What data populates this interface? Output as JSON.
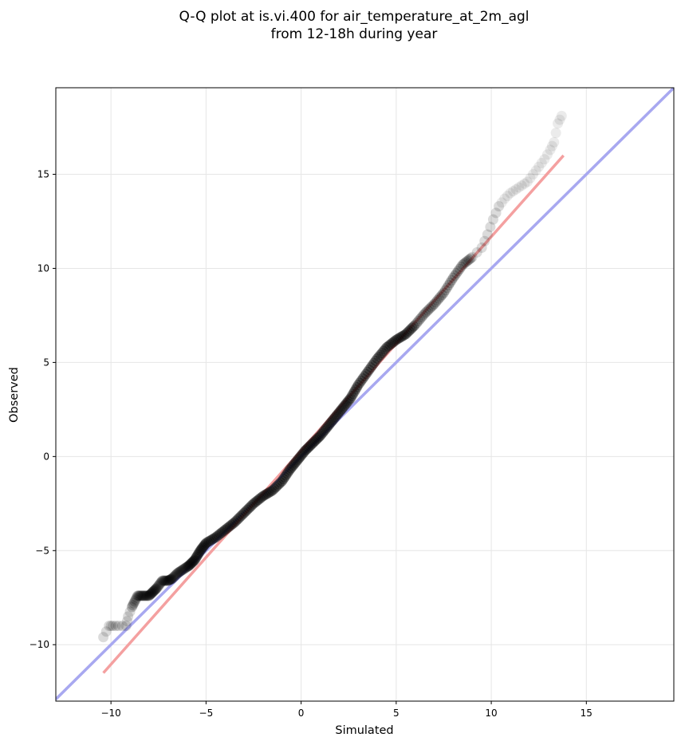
{
  "chart_data": {
    "type": "scatter",
    "title": "Q-Q plot at is.vi.400 for air_temperature_at_2m_agl",
    "subtitle": "from 12-18h during year",
    "xlabel": "Simulated",
    "ylabel": "Observed",
    "xlim": [
      -12.9,
      19.6
    ],
    "ylim": [
      -13.0,
      19.6
    ],
    "x_ticks": [
      -10,
      -5,
      0,
      5,
      10,
      15
    ],
    "y_ticks": [
      -10,
      -5,
      0,
      5,
      10,
      15
    ],
    "x_tick_labels": [
      "−10",
      "−5",
      "0",
      "5",
      "10",
      "15"
    ],
    "y_tick_labels": [
      "−10",
      "−5",
      "0",
      "5",
      "10",
      "15"
    ],
    "grid": true,
    "legend": "none",
    "colors": {
      "points": "#000000",
      "fit_line": "#f4a0a0",
      "identity_line": "#a8a8f0",
      "grid": "#e6e6e6"
    },
    "points": [
      {
        "x": -10.4,
        "y": -9.6
      },
      {
        "x": -10.1,
        "y": -9.0
      },
      {
        "x": -9.9,
        "y": -9.0
      },
      {
        "x": -9.6,
        "y": -9.0
      },
      {
        "x": -9.2,
        "y": -9.0
      },
      {
        "x": -9.1,
        "y": -8.5
      },
      {
        "x": -8.9,
        "y": -8.0
      },
      {
        "x": -8.6,
        "y": -7.4
      },
      {
        "x": -8.3,
        "y": -7.4
      },
      {
        "x": -8.0,
        "y": -7.4
      },
      {
        "x": -7.8,
        "y": -7.2
      },
      {
        "x": -7.6,
        "y": -7.0
      },
      {
        "x": -7.3,
        "y": -6.6
      },
      {
        "x": -7.0,
        "y": -6.6
      },
      {
        "x": -6.8,
        "y": -6.5
      },
      {
        "x": -6.5,
        "y": -6.2
      },
      {
        "x": -6.2,
        "y": -6.0
      },
      {
        "x": -5.9,
        "y": -5.8
      },
      {
        "x": -5.6,
        "y": -5.5
      },
      {
        "x": -5.3,
        "y": -5.0
      },
      {
        "x": -5.0,
        "y": -4.6
      },
      {
        "x": -4.5,
        "y": -4.3
      },
      {
        "x": -4.0,
        "y": -3.9
      },
      {
        "x": -3.5,
        "y": -3.5
      },
      {
        "x": -3.0,
        "y": -3.0
      },
      {
        "x": -2.5,
        "y": -2.5
      },
      {
        "x": -2.0,
        "y": -2.1
      },
      {
        "x": -1.5,
        "y": -1.8
      },
      {
        "x": -1.0,
        "y": -1.3
      },
      {
        "x": -0.6,
        "y": -0.7
      },
      {
        "x": -0.2,
        "y": -0.2
      },
      {
        "x": 0.2,
        "y": 0.3
      },
      {
        "x": 0.6,
        "y": 0.7
      },
      {
        "x": 1.0,
        "y": 1.1
      },
      {
        "x": 1.4,
        "y": 1.6
      },
      {
        "x": 1.8,
        "y": 2.1
      },
      {
        "x": 2.2,
        "y": 2.6
      },
      {
        "x": 2.6,
        "y": 3.1
      },
      {
        "x": 3.0,
        "y": 3.8
      },
      {
        "x": 3.5,
        "y": 4.5
      },
      {
        "x": 4.0,
        "y": 5.2
      },
      {
        "x": 4.5,
        "y": 5.8
      },
      {
        "x": 5.0,
        "y": 6.2
      },
      {
        "x": 5.5,
        "y": 6.5
      },
      {
        "x": 6.0,
        "y": 7.0
      },
      {
        "x": 6.5,
        "y": 7.6
      },
      {
        "x": 7.0,
        "y": 8.1
      },
      {
        "x": 7.5,
        "y": 8.7
      },
      {
        "x": 8.0,
        "y": 9.5
      },
      {
        "x": 8.5,
        "y": 10.2
      },
      {
        "x": 9.0,
        "y": 10.6
      },
      {
        "x": 9.5,
        "y": 11.1
      },
      {
        "x": 9.8,
        "y": 11.8
      },
      {
        "x": 10.1,
        "y": 12.6
      },
      {
        "x": 10.4,
        "y": 13.3
      },
      {
        "x": 10.7,
        "y": 13.7
      },
      {
        "x": 11.0,
        "y": 14.0
      },
      {
        "x": 11.3,
        "y": 14.2
      },
      {
        "x": 11.6,
        "y": 14.4
      },
      {
        "x": 11.9,
        "y": 14.6
      },
      {
        "x": 12.2,
        "y": 15.0
      },
      {
        "x": 12.5,
        "y": 15.4
      },
      {
        "x": 12.8,
        "y": 15.8
      },
      {
        "x": 13.1,
        "y": 16.3
      },
      {
        "x": 13.3,
        "y": 16.7
      },
      {
        "x": 13.5,
        "y": 17.7
      },
      {
        "x": 13.7,
        "y": 18.1
      }
    ],
    "fit_line": {
      "x": [
        -10.4,
        13.8
      ],
      "y": [
        -11.5,
        16.0
      ]
    },
    "identity_line": {
      "x": [
        -12.9,
        19.6
      ],
      "y": [
        -12.9,
        19.6
      ]
    }
  }
}
